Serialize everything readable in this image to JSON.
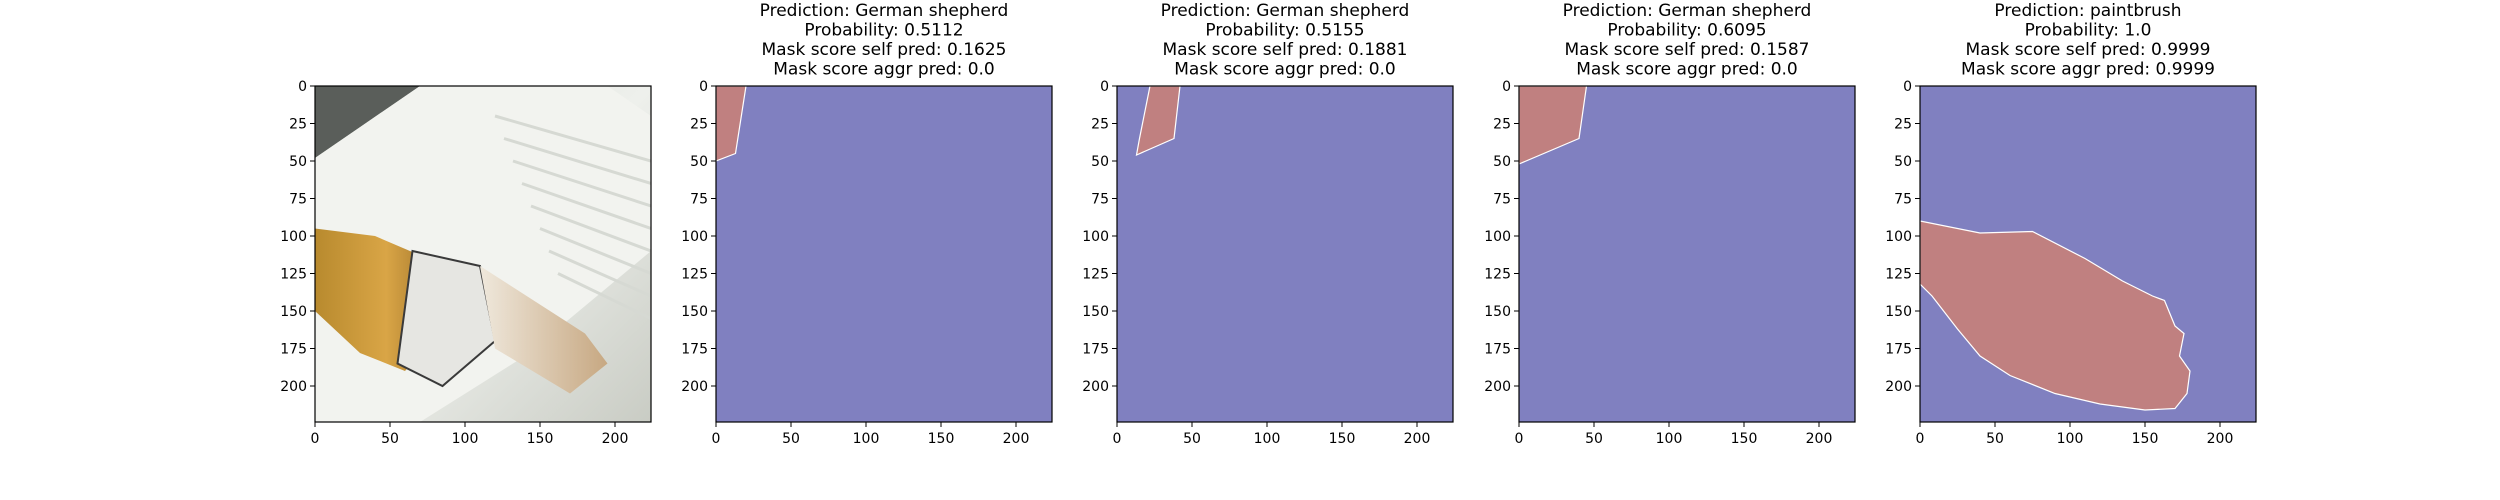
{
  "chart_data": [
    {
      "type": "image",
      "image": "photo",
      "image_description": "paintbrush",
      "xlim": [
        0,
        224
      ],
      "ylim": [
        224,
        0
      ],
      "xticks": [
        0,
        50,
        100,
        150,
        200
      ],
      "yticks": [
        0,
        25,
        50,
        75,
        100,
        125,
        150,
        175,
        200
      ],
      "xtick_labels": [
        "0",
        "50",
        "100",
        "150",
        "200"
      ],
      "ytick_labels": [
        "0",
        "25",
        "50",
        "75",
        "100",
        "125",
        "150",
        "175",
        "200"
      ],
      "title_lines": []
    },
    {
      "type": "mask",
      "prediction": "German shepherd",
      "probability": 0.5112,
      "mask_score_self_pred": 0.1625,
      "mask_score_aggr_pred": 0.0,
      "title_lines": [
        "Prediction: German shepherd",
        "Probability: 0.5112",
        "Mask score self pred: 0.1625",
        "Mask score aggr pred: 0.0"
      ],
      "xlim": [
        0,
        224
      ],
      "ylim": [
        224,
        0
      ],
      "xticks": [
        0,
        50,
        100,
        150,
        200
      ],
      "yticks": [
        0,
        25,
        50,
        75,
        100,
        125,
        150,
        175,
        200
      ],
      "xtick_labels": [
        "0",
        "50",
        "100",
        "150",
        "200"
      ],
      "ytick_labels": [
        "0",
        "25",
        "50",
        "75",
        "100",
        "125",
        "150",
        "175",
        "200"
      ],
      "background_color": "#8080c0",
      "mask_color": "#c08080",
      "mask_polygon": [
        [
          0,
          0
        ],
        [
          20,
          0
        ],
        [
          13,
          45
        ],
        [
          0,
          50
        ]
      ]
    },
    {
      "type": "mask",
      "prediction": "German shepherd",
      "probability": 0.5155,
      "mask_score_self_pred": 0.1881,
      "mask_score_aggr_pred": 0.0,
      "title_lines": [
        "Prediction: German shepherd",
        "Probability: 0.5155",
        "Mask score self pred: 0.1881",
        "Mask score aggr pred: 0.0"
      ],
      "xlim": [
        0,
        224
      ],
      "ylim": [
        224,
        0
      ],
      "xticks": [
        0,
        50,
        100,
        150,
        200
      ],
      "yticks": [
        0,
        25,
        50,
        75,
        100,
        125,
        150,
        175,
        200
      ],
      "xtick_labels": [
        "0",
        "50",
        "100",
        "150",
        "200"
      ],
      "ytick_labels": [
        "0",
        "25",
        "50",
        "75",
        "100",
        "125",
        "150",
        "175",
        "200"
      ],
      "background_color": "#8080c0",
      "mask_color": "#c08080",
      "mask_polygon": [
        [
          22,
          0
        ],
        [
          42,
          0
        ],
        [
          38,
          35
        ],
        [
          13,
          46
        ],
        [
          15,
          35
        ]
      ]
    },
    {
      "type": "mask",
      "prediction": "German shepherd",
      "probability": 0.6095,
      "mask_score_self_pred": 0.1587,
      "mask_score_aggr_pred": 0.0,
      "title_lines": [
        "Prediction: German shepherd",
        "Probability: 0.6095",
        "Mask score self pred: 0.1587",
        "Mask score aggr pred: 0.0"
      ],
      "xlim": [
        0,
        224
      ],
      "ylim": [
        224,
        0
      ],
      "xticks": [
        0,
        50,
        100,
        150,
        200
      ],
      "yticks": [
        0,
        25,
        50,
        75,
        100,
        125,
        150,
        175,
        200
      ],
      "xtick_labels": [
        "0",
        "50",
        "100",
        "150",
        "200"
      ],
      "ytick_labels": [
        "0",
        "25",
        "50",
        "75",
        "100",
        "125",
        "150",
        "175",
        "200"
      ],
      "background_color": "#8080c0",
      "mask_color": "#c08080",
      "mask_polygon": [
        [
          0,
          0
        ],
        [
          45,
          0
        ],
        [
          40,
          35
        ],
        [
          0,
          52
        ]
      ]
    },
    {
      "type": "mask",
      "prediction": "paintbrush",
      "probability": 1.0,
      "mask_score_self_pred": 0.9999,
      "mask_score_aggr_pred": 0.9999,
      "title_lines": [
        "Prediction: paintbrush",
        "Probability: 1.0",
        "Mask score self pred: 0.9999",
        "Mask score aggr pred: 0.9999"
      ],
      "xlim": [
        0,
        224
      ],
      "ylim": [
        224,
        0
      ],
      "xticks": [
        0,
        50,
        100,
        150,
        200
      ],
      "yticks": [
        0,
        25,
        50,
        75,
        100,
        125,
        150,
        175,
        200
      ],
      "xtick_labels": [
        "0",
        "50",
        "100",
        "150",
        "200"
      ],
      "ytick_labels": [
        "0",
        "25",
        "50",
        "75",
        "100",
        "125",
        "150",
        "175",
        "200"
      ],
      "background_color": "#8080c0",
      "mask_color": "#c08080",
      "mask_polygon": [
        [
          0,
          90
        ],
        [
          40,
          98
        ],
        [
          75,
          97
        ],
        [
          110,
          115
        ],
        [
          135,
          130
        ],
        [
          155,
          140
        ],
        [
          163,
          143
        ],
        [
          170,
          160
        ],
        [
          176,
          165
        ],
        [
          173,
          180
        ],
        [
          180,
          190
        ],
        [
          178,
          205
        ],
        [
          170,
          215
        ],
        [
          150,
          216
        ],
        [
          120,
          212
        ],
        [
          90,
          205
        ],
        [
          60,
          193
        ],
        [
          40,
          180
        ],
        [
          25,
          162
        ],
        [
          8,
          140
        ],
        [
          0,
          132
        ]
      ]
    }
  ]
}
